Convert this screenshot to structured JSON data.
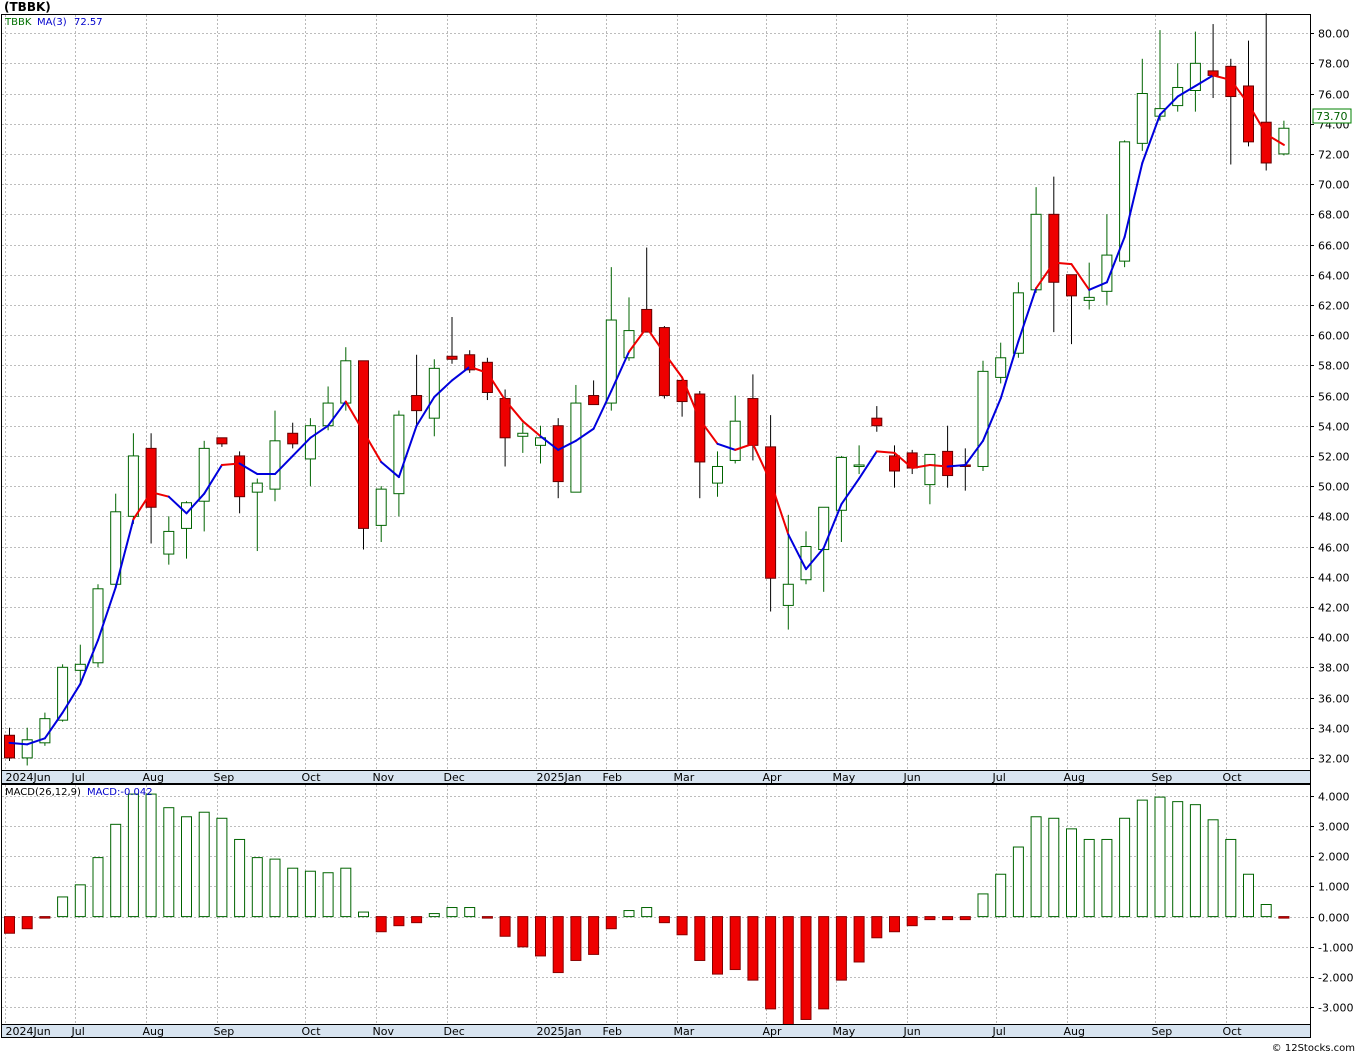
{
  "chart_data": [
    {
      "type": "candlestick",
      "title": "(TBBK)",
      "legend": {
        "symbol": "TBBK",
        "ma_label": "MA(3)",
        "ma_value": "72.57"
      },
      "last_price_label": "73.70",
      "ylim": [
        31.2,
        81.2
      ],
      "y_ticks": [
        32.0,
        34.0,
        36.0,
        38.0,
        40.0,
        42.0,
        44.0,
        46.0,
        48.0,
        50.0,
        52.0,
        54.0,
        56.0,
        58.0,
        60.0,
        62.0,
        64.0,
        66.0,
        68.0,
        70.0,
        72.0,
        74.0,
        76.0,
        78.0,
        80.0
      ],
      "x_labels": [
        "2024Jun",
        "Jul",
        "Aug",
        "Sep",
        "Oct",
        "Nov",
        "Dec",
        "2025Jan",
        "Feb",
        "Mar",
        "Apr",
        "May",
        "Jun",
        "Jul",
        "Aug",
        "Sep",
        "Oct"
      ],
      "x_label_weeks": [
        0,
        4,
        8,
        12,
        17,
        21,
        25,
        30,
        34,
        38,
        43,
        47,
        51,
        56,
        60,
        65,
        69
      ],
      "candles": [
        {
          "o": 33.5,
          "h": 34.0,
          "l": 31.8,
          "c": 32.0
        },
        {
          "o": 32.0,
          "h": 34.0,
          "l": 31.5,
          "c": 33.2
        },
        {
          "o": 33.0,
          "h": 35.0,
          "l": 32.8,
          "c": 34.6
        },
        {
          "o": 34.5,
          "h": 38.2,
          "l": 34.4,
          "c": 38.0
        },
        {
          "o": 37.8,
          "h": 39.5,
          "l": 37.0,
          "c": 38.2
        },
        {
          "o": 38.3,
          "h": 43.5,
          "l": 38.0,
          "c": 43.2
        },
        {
          "o": 43.5,
          "h": 49.5,
          "l": 43.3,
          "c": 48.3
        },
        {
          "o": 48.0,
          "h": 53.5,
          "l": 47.5,
          "c": 52.0
        },
        {
          "o": 52.5,
          "h": 53.5,
          "l": 46.2,
          "c": 48.6
        },
        {
          "o": 45.5,
          "h": 48.0,
          "l": 44.8,
          "c": 47.0
        },
        {
          "o": 47.2,
          "h": 49.0,
          "l": 45.2,
          "c": 48.9
        },
        {
          "o": 49.0,
          "h": 53.0,
          "l": 47.0,
          "c": 52.5
        },
        {
          "o": 53.2,
          "h": 53.2,
          "l": 52.6,
          "c": 52.8
        },
        {
          "o": 52.0,
          "h": 52.3,
          "l": 48.2,
          "c": 49.3
        },
        {
          "o": 49.6,
          "h": 50.5,
          "l": 45.7,
          "c": 50.2
        },
        {
          "o": 49.8,
          "h": 55.0,
          "l": 49.0,
          "c": 53.0
        },
        {
          "o": 53.5,
          "h": 54.2,
          "l": 52.5,
          "c": 52.8
        },
        {
          "o": 51.8,
          "h": 54.5,
          "l": 50.0,
          "c": 54.0
        },
        {
          "o": 54.0,
          "h": 56.6,
          "l": 53.7,
          "c": 55.5
        },
        {
          "o": 55.5,
          "h": 59.2,
          "l": 55.0,
          "c": 58.3
        },
        {
          "o": 58.3,
          "h": 58.3,
          "l": 45.8,
          "c": 47.2
        },
        {
          "o": 47.4,
          "h": 50.0,
          "l": 46.3,
          "c": 49.8
        },
        {
          "o": 49.5,
          "h": 55.0,
          "l": 48.0,
          "c": 54.7
        },
        {
          "o": 56.0,
          "h": 58.7,
          "l": 54.0,
          "c": 55.0
        },
        {
          "o": 54.5,
          "h": 58.4,
          "l": 53.3,
          "c": 57.8
        },
        {
          "o": 58.6,
          "h": 61.2,
          "l": 58.1,
          "c": 58.4
        },
        {
          "o": 58.7,
          "h": 59.0,
          "l": 57.5,
          "c": 57.7
        },
        {
          "o": 58.2,
          "h": 58.5,
          "l": 55.7,
          "c": 56.2
        },
        {
          "o": 55.8,
          "h": 56.4,
          "l": 51.3,
          "c": 53.2
        },
        {
          "o": 53.3,
          "h": 54.2,
          "l": 52.2,
          "c": 53.5
        },
        {
          "o": 52.7,
          "h": 54.0,
          "l": 51.5,
          "c": 53.2
        },
        {
          "o": 54.0,
          "h": 54.5,
          "l": 49.2,
          "c": 50.3
        },
        {
          "o": 49.6,
          "h": 56.7,
          "l": 49.6,
          "c": 55.5
        },
        {
          "o": 56.0,
          "h": 57.0,
          "l": 55.5,
          "c": 55.4
        },
        {
          "o": 55.5,
          "h": 64.5,
          "l": 55.0,
          "c": 61.0
        },
        {
          "o": 58.5,
          "h": 62.5,
          "l": 58.3,
          "c": 60.3
        },
        {
          "o": 61.7,
          "h": 65.8,
          "l": 60.5,
          "c": 60.2
        },
        {
          "o": 60.5,
          "h": 60.6,
          "l": 55.8,
          "c": 56.0
        },
        {
          "o": 57.0,
          "h": 57.2,
          "l": 54.6,
          "c": 55.6
        },
        {
          "o": 56.1,
          "h": 56.3,
          "l": 49.2,
          "c": 51.6
        },
        {
          "o": 50.2,
          "h": 52.3,
          "l": 49.3,
          "c": 51.3
        },
        {
          "o": 51.7,
          "h": 56.0,
          "l": 51.5,
          "c": 54.3
        },
        {
          "o": 55.8,
          "h": 57.4,
          "l": 51.7,
          "c": 52.7
        },
        {
          "o": 52.6,
          "h": 54.7,
          "l": 41.7,
          "c": 43.9
        },
        {
          "o": 42.1,
          "h": 48.1,
          "l": 40.5,
          "c": 43.5
        },
        {
          "o": 43.8,
          "h": 47.0,
          "l": 43.5,
          "c": 46.0
        },
        {
          "o": 45.8,
          "h": 48.5,
          "l": 43.0,
          "c": 48.6
        },
        {
          "o": 48.4,
          "h": 52.0,
          "l": 46.3,
          "c": 51.9
        },
        {
          "o": 51.3,
          "h": 52.7,
          "l": 50.8,
          "c": 51.4
        },
        {
          "o": 54.5,
          "h": 55.3,
          "l": 53.6,
          "c": 54.0
        },
        {
          "o": 52.0,
          "h": 52.7,
          "l": 49.9,
          "c": 51.0
        },
        {
          "o": 52.2,
          "h": 52.4,
          "l": 50.8,
          "c": 51.2
        },
        {
          "o": 50.1,
          "h": 51.6,
          "l": 48.8,
          "c": 52.1
        },
        {
          "o": 52.3,
          "h": 54.0,
          "l": 49.9,
          "c": 50.7
        },
        {
          "o": 51.4,
          "h": 52.5,
          "l": 49.7,
          "c": 51.3
        },
        {
          "o": 51.3,
          "h": 58.3,
          "l": 51.0,
          "c": 57.6
        },
        {
          "o": 57.2,
          "h": 59.5,
          "l": 56.8,
          "c": 58.5
        },
        {
          "o": 58.8,
          "h": 63.5,
          "l": 58.5,
          "c": 62.8
        },
        {
          "o": 63.0,
          "h": 69.8,
          "l": 62.8,
          "c": 68.0
        },
        {
          "o": 68.0,
          "h": 70.5,
          "l": 60.2,
          "c": 63.5
        },
        {
          "o": 64.0,
          "h": 64.0,
          "l": 59.4,
          "c": 62.6
        },
        {
          "o": 62.3,
          "h": 64.8,
          "l": 61.7,
          "c": 62.5
        },
        {
          "o": 62.9,
          "h": 68.0,
          "l": 62.0,
          "c": 65.3
        },
        {
          "o": 64.9,
          "h": 72.9,
          "l": 64.5,
          "c": 72.8
        },
        {
          "o": 72.7,
          "h": 78.3,
          "l": 72.2,
          "c": 76.0
        },
        {
          "o": 74.5,
          "h": 80.2,
          "l": 74.2,
          "c": 75.0
        },
        {
          "o": 75.2,
          "h": 78.0,
          "l": 74.8,
          "c": 76.4
        },
        {
          "o": 76.2,
          "h": 80.1,
          "l": 74.8,
          "c": 78.0
        },
        {
          "o": 77.5,
          "h": 80.6,
          "l": 75.7,
          "c": 77.2
        },
        {
          "o": 77.8,
          "h": 78.3,
          "l": 71.3,
          "c": 75.8
        },
        {
          "o": 76.5,
          "h": 79.5,
          "l": 72.5,
          "c": 72.8
        },
        {
          "o": 74.1,
          "h": 81.3,
          "l": 70.9,
          "c": 71.4
        },
        {
          "o": 72.0,
          "h": 74.2,
          "l": 71.9,
          "c": 73.7
        }
      ],
      "ma3": [
        33.0,
        32.9,
        33.3,
        35.0,
        36.9,
        39.8,
        43.3,
        47.8,
        49.6,
        49.3,
        48.2,
        49.5,
        51.4,
        51.5,
        50.8,
        50.8,
        52.0,
        53.2,
        54.0,
        55.6,
        53.6,
        51.6,
        50.6,
        54.0,
        55.9,
        57.0,
        57.9,
        57.5,
        55.7,
        54.3,
        53.3,
        52.4,
        53.0,
        53.8,
        56.3,
        58.9,
        60.5,
        58.8,
        57.2,
        54.4,
        52.8,
        52.4,
        52.8,
        50.3,
        46.8,
        44.5,
        45.9,
        48.8,
        50.5,
        52.3,
        52.2,
        51.2,
        51.4,
        51.3,
        51.4,
        53.0,
        55.8,
        59.6,
        63.1,
        64.8,
        64.7,
        63.0,
        63.5,
        66.5,
        71.4,
        74.6,
        75.8,
        76.5,
        77.2,
        76.9,
        75.3,
        73.3,
        72.6
      ],
      "ma3_colors": [
        "blue",
        "blue",
        "blue",
        "blue",
        "blue",
        "blue",
        "blue",
        "blue",
        "red",
        "red",
        "blue",
        "blue",
        "blue",
        "red",
        "blue",
        "blue",
        "blue",
        "blue",
        "blue",
        "blue",
        "red",
        "red",
        "blue",
        "blue",
        "blue",
        "blue",
        "blue",
        "red",
        "red",
        "red",
        "red",
        "blue",
        "blue",
        "blue",
        "blue",
        "blue",
        "red",
        "red",
        "red",
        "red",
        "red",
        "blue",
        "red",
        "red",
        "red",
        "blue",
        "blue",
        "blue",
        "blue",
        "blue",
        "red",
        "red",
        "red",
        "red",
        "blue",
        "blue",
        "blue",
        "blue",
        "blue",
        "red",
        "red",
        "red",
        "blue",
        "blue",
        "blue",
        "blue",
        "blue",
        "blue",
        "blue",
        "red",
        "red",
        "red",
        "red"
      ]
    },
    {
      "type": "bar",
      "title": "MACD(26,12,9)",
      "value_label": "MACD:-0.042",
      "ylim": [
        -3.55,
        4.35
      ],
      "y_ticks": [
        4.0,
        3.0,
        2.0,
        1.0,
        0.0,
        -1.0,
        -2.0,
        -3.0
      ],
      "y_tick_labels": [
        "4.000",
        "3.000",
        "2.000",
        "1.000",
        "0.000",
        "-1.000",
        "-2.000",
        "-3.000"
      ],
      "values": [
        -0.55,
        -0.4,
        -0.05,
        0.65,
        1.05,
        1.95,
        3.05,
        4.05,
        4.05,
        3.6,
        3.3,
        3.45,
        3.25,
        2.55,
        1.95,
        1.9,
        1.6,
        1.5,
        1.45,
        1.6,
        0.15,
        -0.5,
        -0.3,
        -0.2,
        0.1,
        0.3,
        0.3,
        -0.05,
        -0.65,
        -1.0,
        -1.3,
        -1.85,
        -1.45,
        -1.25,
        -0.4,
        0.2,
        0.3,
        -0.2,
        -0.6,
        -1.45,
        -1.9,
        -1.75,
        -2.1,
        -3.05,
        -3.65,
        -3.4,
        -3.05,
        -2.1,
        -1.5,
        -0.7,
        -0.5,
        -0.3,
        -0.1,
        -0.1,
        -0.1,
        0.75,
        1.4,
        2.3,
        3.3,
        3.25,
        2.9,
        2.55,
        2.55,
        3.25,
        3.85,
        3.95,
        3.8,
        3.7,
        3.2,
        2.55,
        1.4,
        0.4,
        -0.05
      ]
    }
  ],
  "footer": {
    "credit": "© 12Stocks.com"
  }
}
